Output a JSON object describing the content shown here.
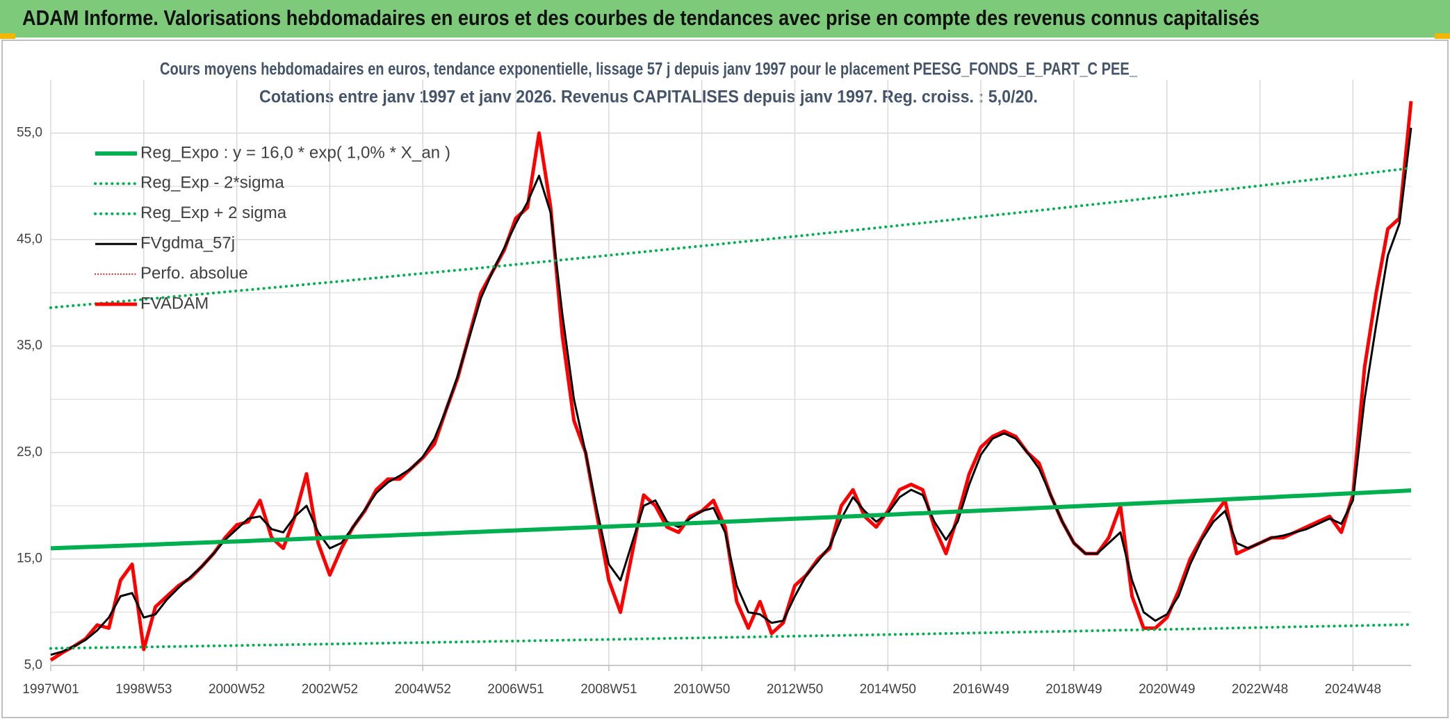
{
  "header": {
    "title": "ADAM Informe. Valorisations hebdomadaires en euros et des courbes de tendances avec prise en compte des revenus connus capitalisés"
  },
  "chart_data": {
    "type": "line",
    "title_lines": [
      "Cours moyens hebdomadaires en euros, tendance exponentielle, lissage 57 j depuis janv 1997 pour le placement PEESG_FONDS_E_PART_C PEE_",
      "Cotations entre janv 1997 et janv 2026. Revenus CAPITALISES depuis janv 1997. Reg. croiss. : 5,0/20."
    ],
    "categories": [
      "1997W01",
      null,
      null,
      null,
      null,
      null,
      null,
      null,
      "1998W53",
      null,
      null,
      null,
      null,
      null,
      null,
      null,
      "2000W52",
      null,
      null,
      null,
      null,
      null,
      null,
      null,
      "2002W52",
      null,
      null,
      null,
      null,
      null,
      null,
      null,
      "2004W52",
      null,
      null,
      null,
      null,
      null,
      null,
      null,
      "2006W51",
      null,
      null,
      null,
      null,
      null,
      null,
      null,
      "2008W51",
      null,
      null,
      null,
      null,
      null,
      null,
      null,
      "2010W50",
      null,
      null,
      null,
      null,
      null,
      null,
      null,
      "2012W50",
      null,
      null,
      null,
      null,
      null,
      null,
      null,
      "2014W50",
      null,
      null,
      null,
      null,
      null,
      null,
      null,
      "2016W49",
      null,
      null,
      null,
      null,
      null,
      null,
      null,
      "2018W49",
      null,
      null,
      null,
      null,
      null,
      null,
      null,
      "2020W49",
      null,
      null,
      null,
      null,
      null,
      null,
      null,
      "2022W48",
      null,
      null,
      null,
      null,
      null,
      null,
      null,
      "2024W48",
      null,
      null,
      null,
      null,
      null
    ],
    "ylim": [
      5,
      60
    ],
    "yticks": [
      {
        "value": 5,
        "label": "5,0"
      },
      {
        "value": 15,
        "label": "15,0"
      },
      {
        "value": 25,
        "label": "25,0"
      },
      {
        "value": 35,
        "label": "35,0"
      },
      {
        "value": 45,
        "label": "45,0"
      },
      {
        "value": 55,
        "label": "55,0"
      }
    ],
    "ygrid_minor": [
      10,
      20,
      30,
      40,
      50
    ],
    "grid": true,
    "legend": "upper-left",
    "series": [
      {
        "name": "Reg_Expo : y = 16,0 * exp( 1,0% *  X_an )",
        "color": "#00b050",
        "width": 6,
        "values": [
          16.0,
          16.04,
          16.08,
          16.12,
          16.16,
          16.2,
          16.24,
          16.28,
          16.32,
          16.36,
          16.41,
          16.45,
          16.49,
          16.53,
          16.57,
          16.61,
          16.65,
          16.69,
          16.74,
          16.78,
          16.82,
          16.86,
          16.91,
          16.95,
          16.99,
          17.03,
          17.08,
          17.12,
          17.16,
          17.2,
          17.25,
          17.29,
          17.33,
          17.37,
          17.42,
          17.46,
          17.51,
          17.55,
          17.6,
          17.64,
          17.68,
          17.73,
          17.77,
          17.82,
          17.86,
          17.91,
          17.95,
          18.0,
          18.04,
          18.09,
          18.13,
          18.18,
          18.22,
          18.27,
          18.31,
          18.36,
          18.4,
          18.45,
          18.5,
          18.54,
          18.59,
          18.64,
          18.69,
          18.73,
          18.78,
          18.82,
          18.87,
          18.91,
          18.96,
          19.01,
          19.06,
          19.11,
          19.16,
          19.21,
          19.26,
          19.3,
          19.35,
          19.4,
          19.45,
          19.49,
          19.54,
          19.59,
          19.64,
          19.69,
          19.74,
          19.79,
          19.84,
          19.89,
          19.94,
          19.99,
          20.04,
          20.09,
          20.14,
          20.19,
          20.24,
          20.29,
          20.34,
          20.39,
          20.44,
          20.49,
          20.54,
          20.59,
          20.65,
          20.7,
          20.75,
          20.8,
          20.86,
          20.91,
          20.96,
          21.01,
          21.07,
          21.12,
          21.17,
          21.22,
          21.28,
          21.33,
          21.38,
          21.44
        ]
      },
      {
        "name": "Reg_Exp - 2*sigma",
        "color": "#00b050",
        "width": 4,
        "dash": "dotted",
        "values": [
          6.6,
          6.62,
          6.63,
          6.65,
          6.67,
          6.68,
          6.7,
          6.71,
          6.73,
          6.75,
          6.77,
          6.78,
          6.8,
          6.82,
          6.84,
          6.85,
          6.87,
          6.89,
          6.91,
          6.92,
          6.94,
          6.96,
          6.98,
          6.99,
          7.01,
          7.03,
          7.05,
          7.06,
          7.08,
          7.1,
          7.12,
          7.13,
          7.15,
          7.17,
          7.19,
          7.2,
          7.22,
          7.24,
          7.26,
          7.27,
          7.29,
          7.31,
          7.33,
          7.35,
          7.37,
          7.39,
          7.41,
          7.42,
          7.44,
          7.46,
          7.48,
          7.5,
          7.52,
          7.54,
          7.56,
          7.57,
          7.59,
          7.61,
          7.63,
          7.65,
          7.67,
          7.69,
          7.71,
          7.73,
          7.75,
          7.77,
          7.79,
          7.8,
          7.82,
          7.84,
          7.86,
          7.88,
          7.9,
          7.92,
          7.94,
          7.96,
          7.98,
          8.0,
          8.02,
          8.04,
          8.06,
          8.08,
          8.1,
          8.12,
          8.14,
          8.16,
          8.18,
          8.2,
          8.22,
          8.24,
          8.27,
          8.29,
          8.31,
          8.33,
          8.35,
          8.37,
          8.39,
          8.41,
          8.43,
          8.45,
          8.47,
          8.49,
          8.52,
          8.54,
          8.56,
          8.58,
          8.6,
          8.63,
          8.65,
          8.67,
          8.69,
          8.71,
          8.73,
          8.75,
          8.78,
          8.8,
          8.82,
          8.84
        ]
      },
      {
        "name": "Reg_Exp + 2 sigma",
        "color": "#00b050",
        "width": 4,
        "dash": "dotted",
        "values": [
          38.6,
          38.7,
          38.8,
          38.89,
          38.99,
          39.09,
          39.19,
          39.28,
          39.38,
          39.48,
          39.58,
          39.68,
          39.78,
          39.88,
          39.98,
          40.08,
          40.18,
          40.28,
          40.38,
          40.48,
          40.58,
          40.68,
          40.79,
          40.89,
          40.99,
          41.09,
          41.2,
          41.3,
          41.4,
          41.51,
          41.61,
          41.72,
          41.82,
          41.92,
          42.03,
          42.13,
          42.23,
          42.34,
          42.45,
          42.55,
          42.66,
          42.77,
          42.88,
          42.98,
          43.09,
          43.2,
          43.31,
          43.41,
          43.52,
          43.63,
          43.74,
          43.85,
          43.96,
          44.07,
          44.18,
          44.29,
          44.4,
          44.51,
          44.63,
          44.74,
          44.85,
          44.96,
          45.08,
          45.19,
          45.3,
          45.41,
          45.53,
          45.64,
          45.75,
          45.87,
          45.98,
          46.1,
          46.21,
          46.33,
          46.45,
          46.56,
          46.68,
          46.8,
          46.92,
          47.03,
          47.15,
          47.27,
          47.39,
          47.5,
          47.62,
          47.74,
          47.86,
          47.98,
          48.1,
          48.22,
          48.34,
          48.46,
          48.58,
          48.7,
          48.83,
          48.95,
          49.07,
          49.19,
          49.32,
          49.44,
          49.56,
          49.69,
          49.81,
          49.94,
          50.06,
          50.19,
          50.31,
          50.44,
          50.56,
          50.69,
          50.82,
          50.94,
          51.07,
          51.2,
          51.33,
          51.46,
          51.59,
          51.72
        ]
      },
      {
        "name": "FVgdma_57j",
        "color": "#000000",
        "width": 3,
        "values": [
          6.0,
          6.3,
          6.8,
          7.4,
          8.3,
          9.5,
          11.5,
          11.8,
          9.5,
          9.8,
          11.2,
          12.3,
          13.3,
          14.3,
          15.5,
          16.8,
          17.8,
          18.8,
          19.0,
          17.8,
          17.5,
          19.0,
          20.0,
          17.5,
          16.0,
          16.5,
          18.0,
          19.6,
          21.2,
          22.2,
          22.8,
          23.5,
          24.6,
          26.3,
          29.0,
          32.2,
          35.8,
          39.5,
          42.0,
          44.2,
          46.5,
          48.5,
          51.0,
          47.5,
          38.0,
          30.0,
          25.0,
          19.5,
          14.5,
          13.0,
          16.5,
          20.0,
          20.5,
          18.5,
          18.0,
          18.8,
          19.5,
          19.8,
          17.5,
          12.5,
          10.0,
          9.8,
          9.0,
          9.2,
          11.5,
          13.5,
          14.8,
          16.2,
          18.8,
          20.8,
          19.5,
          18.5,
          19.3,
          20.8,
          21.5,
          21.0,
          18.5,
          16.8,
          18.5,
          22.0,
          24.8,
          26.3,
          26.8,
          26.3,
          25.0,
          23.5,
          21.0,
          18.5,
          16.5,
          15.5,
          15.5,
          16.5,
          17.5,
          13.0,
          10.0,
          9.2,
          9.8,
          11.5,
          14.5,
          16.8,
          18.5,
          19.5,
          16.5,
          16.0,
          16.5,
          17.0,
          17.2,
          17.5,
          17.8,
          18.3,
          18.8,
          18.3,
          20.5,
          30.0,
          37.0,
          43.5,
          46.5,
          55.5
        ]
      },
      {
        "name": "Perfo. absolue",
        "color": "#c00000",
        "width": 2,
        "dash": "dotted"
      },
      {
        "name": "FVADAM",
        "color": "#ff0000",
        "width": 5,
        "values": [
          5.5,
          6.2,
          6.8,
          7.5,
          8.8,
          8.5,
          13,
          14.5,
          6.5,
          10.5,
          11.5,
          12.5,
          13.2,
          14.3,
          15.5,
          17,
          18.2,
          18.5,
          20.5,
          17,
          16,
          19,
          23,
          16.5,
          13.5,
          16,
          18,
          19.5,
          21.5,
          22.5,
          22.5,
          23.5,
          24.5,
          25.8,
          29,
          32,
          36,
          40,
          42,
          44,
          47,
          48,
          55,
          48,
          36,
          28,
          25,
          19,
          13,
          10,
          15.5,
          21,
          20,
          18,
          17.5,
          19,
          19.5,
          20.5,
          18,
          11,
          8.5,
          11,
          8,
          9,
          12.5,
          13.5,
          15,
          16,
          20,
          21.5,
          19,
          18,
          19.5,
          21.5,
          22,
          21.5,
          18,
          15.5,
          19,
          23,
          25.5,
          26.5,
          27,
          26.5,
          25,
          24,
          21,
          18.5,
          16.5,
          15.5,
          15.5,
          17,
          20,
          11.5,
          8.5,
          8.5,
          9.5,
          12,
          15,
          17,
          19,
          20.5,
          15.5,
          16,
          16.5,
          17,
          17,
          17.5,
          18,
          18.5,
          19,
          17.5,
          21,
          33,
          40,
          46,
          47,
          58
        ]
      }
    ]
  }
}
